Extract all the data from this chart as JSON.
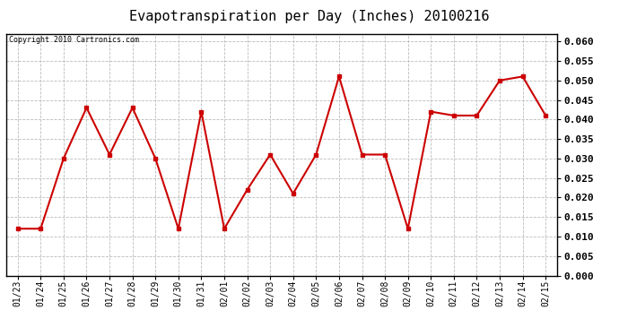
{
  "title": "Evapotranspiration per Day (Inches) 20100216",
  "copyright_text": "Copyright 2010 Cartronics.com",
  "dates": [
    "01/23",
    "01/24",
    "01/25",
    "01/26",
    "01/27",
    "01/28",
    "01/29",
    "01/30",
    "01/31",
    "02/01",
    "02/02",
    "02/03",
    "02/04",
    "02/05",
    "02/06",
    "02/07",
    "02/08",
    "02/09",
    "02/10",
    "02/11",
    "02/12",
    "02/13",
    "02/14",
    "02/15"
  ],
  "values": [
    0.012,
    0.012,
    0.03,
    0.043,
    0.031,
    0.043,
    0.03,
    0.012,
    0.042,
    0.012,
    0.022,
    0.031,
    0.021,
    0.031,
    0.051,
    0.031,
    0.031,
    0.012,
    0.042,
    0.041,
    0.041,
    0.05,
    0.051,
    0.041
  ],
  "line_color": "#cc0000",
  "marker": "s",
  "marker_size": 3,
  "ylim": [
    0.0,
    0.062
  ],
  "yticks": [
    0.0,
    0.005,
    0.01,
    0.015,
    0.02,
    0.025,
    0.03,
    0.035,
    0.04,
    0.045,
    0.05,
    0.055,
    0.06
  ],
  "bg_color": "#ffffff",
  "grid_color": "#bbbbbb",
  "title_fontsize": 11,
  "copyright_fontsize": 6,
  "tick_fontsize": 7,
  "ytick_fontsize": 8,
  "line_width": 1.5
}
